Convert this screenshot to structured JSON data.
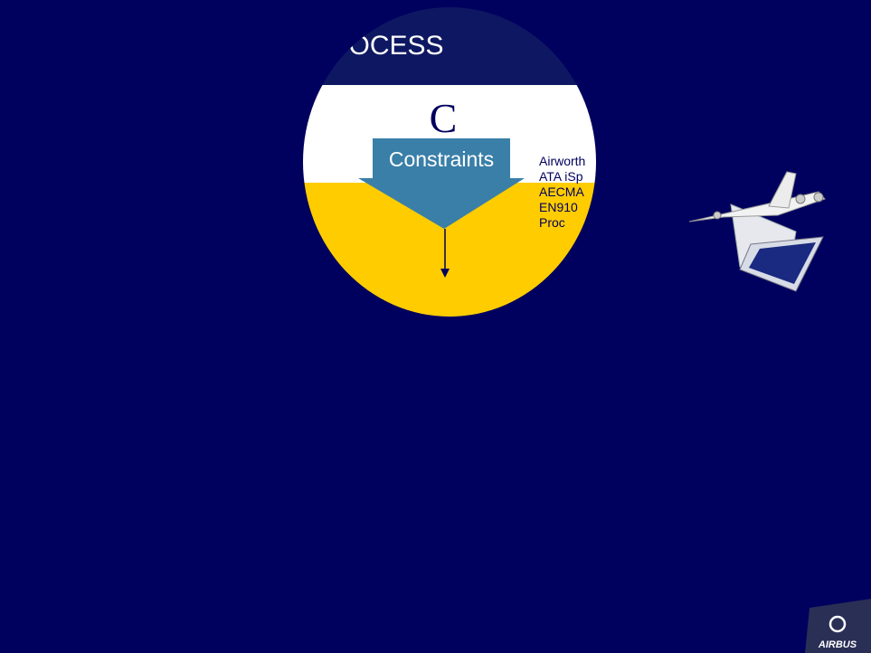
{
  "slide": {
    "title": "OCESS",
    "letter": "C",
    "arrow_label": "Constraints",
    "list": [
      "Airworth",
      "ATA iSp",
      "AECMA",
      "EN910",
      "Proc"
    ],
    "logo": "AIRBUS"
  }
}
